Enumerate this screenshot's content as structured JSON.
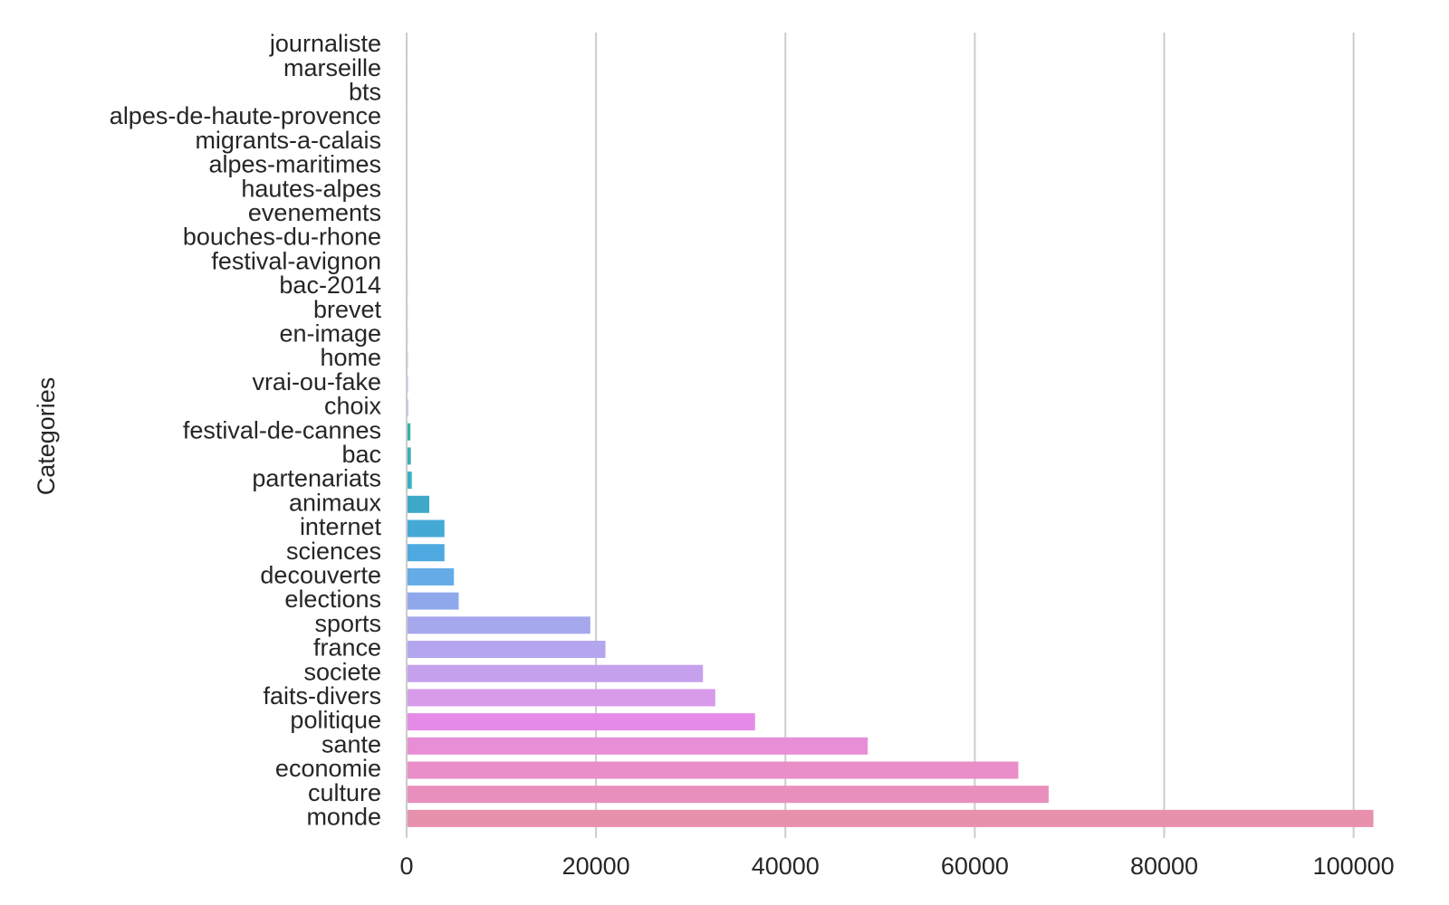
{
  "chart_data": {
    "type": "bar",
    "orientation": "horizontal",
    "title": "",
    "xlabel": "",
    "ylabel": "Categories",
    "xlim": [
      0,
      103000
    ],
    "xticks": [
      0,
      20000,
      40000,
      60000,
      80000,
      100000
    ],
    "grid": "vertical",
    "legend": "none",
    "categories": [
      "journaliste",
      "marseille",
      "bts",
      "alpes-de-haute-provence",
      "migrants-a-calais",
      "alpes-maritimes",
      "hautes-alpes",
      "evenements",
      "bouches-du-rhone",
      "festival-avignon",
      "bac-2014",
      "brevet",
      "en-image",
      "home",
      "vrai-ou-fake",
      "choix",
      "festival-de-cannes",
      "bac",
      "partenariats",
      "animaux",
      "internet",
      "sciences",
      "decouverte",
      "elections",
      "sports",
      "france",
      "societe",
      "faits-divers",
      "politique",
      "sante",
      "economie",
      "culture",
      "monde"
    ],
    "values": [
      1,
      1,
      2,
      2,
      3,
      3,
      4,
      5,
      6,
      8,
      10,
      12,
      15,
      20,
      30,
      50,
      300,
      350,
      450,
      2300,
      3900,
      3900,
      4900,
      5400,
      19300,
      20900,
      31200,
      32500,
      36700,
      48600,
      64500,
      67700,
      102000
    ],
    "colors": [
      "#f77189",
      "#f7754f",
      "#e18632",
      "#c99530",
      "#b69b31",
      "#a4a031",
      "#8fa531",
      "#6eab31",
      "#32b166",
      "#34ae8a",
      "#35ac9f",
      "#36aab0",
      "#37a8c2",
      "#39a5da",
      "#6a9ff3",
      "#93a1f5",
      "#33b2a4",
      "#37b0b5",
      "#3aafc2",
      "#3ea8c8",
      "#45a9d5",
      "#4ea9e0",
      "#64ace8",
      "#8fa8ec",
      "#a6a8ed",
      "#b3a6ee",
      "#c5a0ec",
      "#d79be9",
      "#e68ae8",
      "#e88ed6",
      "#e98ec8",
      "#e98fbb",
      "#e891ad"
    ]
  }
}
